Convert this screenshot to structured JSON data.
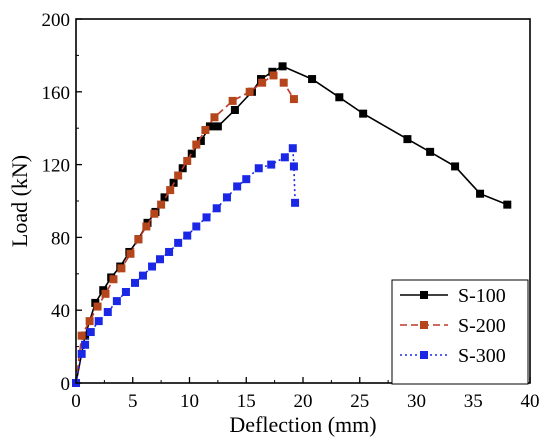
{
  "chart_data": {
    "type": "line",
    "xlabel": "Deflection (mm)",
    "ylabel": "Load (kN)",
    "xlim": [
      0,
      40
    ],
    "ylim": [
      0,
      200
    ],
    "xticks": [
      0,
      5,
      10,
      15,
      20,
      25,
      30,
      35,
      40
    ],
    "yticks": [
      0,
      40,
      80,
      120,
      160,
      200
    ],
    "grid": false,
    "legend_position": "bottom-right",
    "series": [
      {
        "name": "S-100",
        "color": "#000000",
        "line_style": "solid",
        "marker": "square",
        "points": [
          [
            0,
            0
          ],
          [
            0.8,
            26
          ],
          [
            1.7,
            44
          ],
          [
            2.4,
            51
          ],
          [
            3.1,
            58
          ],
          [
            3.9,
            64
          ],
          [
            4.7,
            72
          ],
          [
            5.5,
            79
          ],
          [
            6.3,
            88
          ],
          [
            7.0,
            94
          ],
          [
            7.8,
            102
          ],
          [
            8.6,
            110
          ],
          [
            9.4,
            118
          ],
          [
            10.2,
            126
          ],
          [
            11.0,
            133
          ],
          [
            11.8,
            141
          ],
          [
            12.5,
            141
          ],
          [
            14.0,
            150
          ],
          [
            15.5,
            160
          ],
          [
            16.3,
            167
          ],
          [
            17.3,
            171
          ],
          [
            18.2,
            174
          ],
          [
            20.8,
            167
          ],
          [
            23.2,
            157
          ],
          [
            25.3,
            148
          ],
          [
            29.2,
            134
          ],
          [
            31.2,
            127
          ],
          [
            33.4,
            119
          ],
          [
            35.6,
            104
          ],
          [
            38.0,
            98
          ]
        ]
      },
      {
        "name": "S-200",
        "color": "#c0392b",
        "marker_color": "#b5451b",
        "line_style": "dashed",
        "marker": "square",
        "points": [
          [
            0,
            0
          ],
          [
            0.5,
            26
          ],
          [
            1.2,
            34
          ],
          [
            1.9,
            42
          ],
          [
            2.6,
            49
          ],
          [
            3.3,
            57
          ],
          [
            4.0,
            63
          ],
          [
            4.8,
            71
          ],
          [
            5.5,
            79
          ],
          [
            6.2,
            86
          ],
          [
            6.9,
            93
          ],
          [
            7.5,
            98
          ],
          [
            8.3,
            106
          ],
          [
            9.0,
            114
          ],
          [
            9.8,
            122
          ],
          [
            10.6,
            131
          ],
          [
            11.4,
            139
          ],
          [
            12.2,
            146
          ],
          [
            13.8,
            155
          ],
          [
            15.3,
            160
          ],
          [
            16.4,
            165
          ],
          [
            17.4,
            169
          ],
          [
            18.3,
            165
          ],
          [
            19.2,
            156
          ]
        ]
      },
      {
        "name": "S-300",
        "color": "#1a28e6",
        "line_style": "dotted",
        "marker": "square",
        "points": [
          [
            0,
            0
          ],
          [
            0.5,
            16
          ],
          [
            0.8,
            21
          ],
          [
            1.3,
            28
          ],
          [
            2.0,
            34
          ],
          [
            2.8,
            39
          ],
          [
            3.6,
            45
          ],
          [
            4.4,
            50
          ],
          [
            5.2,
            55
          ],
          [
            5.9,
            59
          ],
          [
            6.7,
            64
          ],
          [
            7.4,
            68
          ],
          [
            8.2,
            72
          ],
          [
            9.0,
            77
          ],
          [
            9.8,
            81
          ],
          [
            10.6,
            86
          ],
          [
            11.5,
            91
          ],
          [
            12.4,
            96
          ],
          [
            13.3,
            102
          ],
          [
            14.2,
            108
          ],
          [
            15.0,
            112
          ],
          [
            16.1,
            118
          ],
          [
            17.2,
            120
          ],
          [
            18.4,
            124
          ],
          [
            19.1,
            129
          ],
          [
            19.2,
            119
          ],
          [
            19.3,
            99
          ]
        ]
      }
    ]
  }
}
